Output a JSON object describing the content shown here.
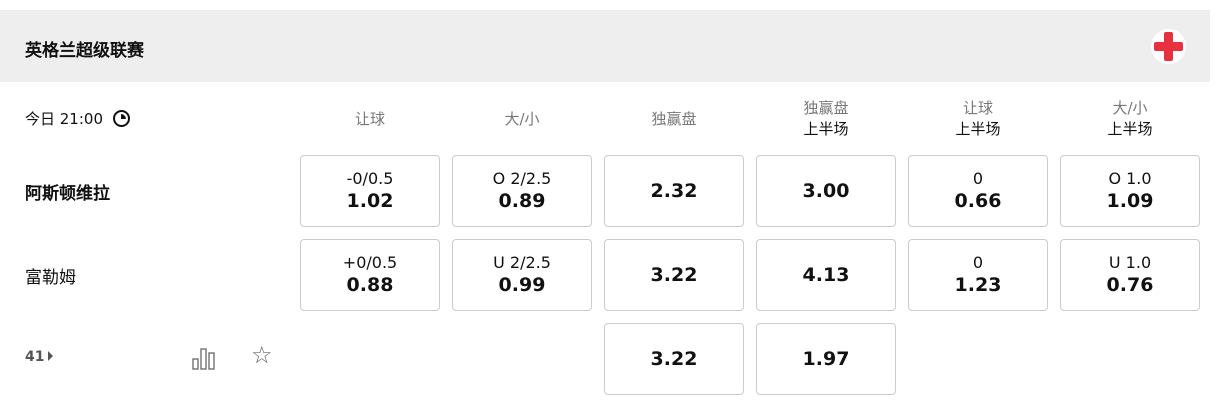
{
  "league": {
    "title": "英格兰超级联赛",
    "flag_icon": "england-flag-icon",
    "flag_color": "#e8313f"
  },
  "match": {
    "time": "今日 21:00",
    "more_count": "41"
  },
  "columns": [
    {
      "main": "让球",
      "sub": ""
    },
    {
      "main": "大/小",
      "sub": ""
    },
    {
      "main": "独赢盘",
      "sub": ""
    },
    {
      "main": "独赢盘",
      "sub": "上半场"
    },
    {
      "main": "让球",
      "sub": "上半场"
    },
    {
      "main": "大/小",
      "sub": "上半场"
    }
  ],
  "teams": [
    {
      "name": "阿斯顿维拉",
      "odds": [
        {
          "line": "-0/0.5",
          "value": "1.02"
        },
        {
          "line": "O 2/2.5",
          "value": "0.89"
        },
        {
          "line": "",
          "value": "2.32"
        },
        {
          "line": "",
          "value": "3.00"
        },
        {
          "line": "0",
          "value": "0.66"
        },
        {
          "line": "O 1.0",
          "value": "1.09"
        }
      ]
    },
    {
      "name": "富勒姆",
      "odds": [
        {
          "line": "+0/0.5",
          "value": "0.88"
        },
        {
          "line": "U 2/2.5",
          "value": "0.99"
        },
        {
          "line": "",
          "value": "3.22"
        },
        {
          "line": "",
          "value": "4.13"
        },
        {
          "line": "0",
          "value": "1.23"
        },
        {
          "line": "U 1.0",
          "value": "0.76"
        }
      ]
    }
  ],
  "draw": {
    "odds": [
      {
        "value": "3.22"
      },
      {
        "value": "1.97"
      }
    ]
  }
}
